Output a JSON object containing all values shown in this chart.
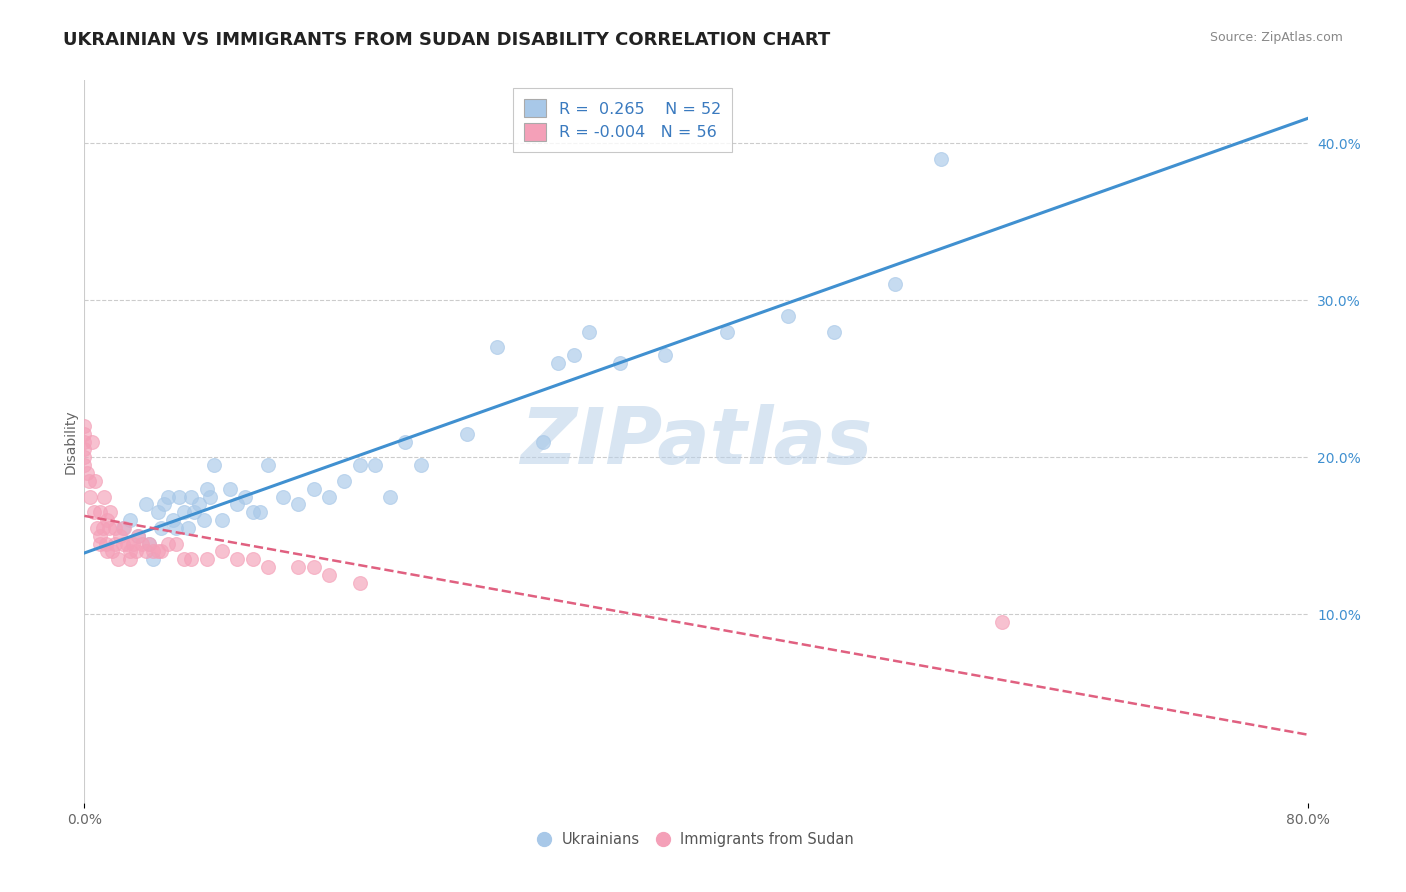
{
  "title": "UKRAINIAN VS IMMIGRANTS FROM SUDAN DISABILITY CORRELATION CHART",
  "source": "Source: ZipAtlas.com",
  "ylabel": "Disability",
  "watermark": "ZIPatlas",
  "xlim": [
    0.0,
    0.8
  ],
  "ylim": [
    -0.02,
    0.44
  ],
  "yticks_right": [
    0.1,
    0.2,
    0.3,
    0.4
  ],
  "ytick_labels_right": [
    "10.0%",
    "20.0%",
    "30.0%",
    "40.0%"
  ],
  "blue_color": "#a8c8e8",
  "pink_color": "#f4a0b8",
  "trendline_blue": "#4090d0",
  "trendline_pink": "#e06080",
  "ukrainians_x": [
    0.025,
    0.03,
    0.035,
    0.04,
    0.042,
    0.045,
    0.048,
    0.05,
    0.052,
    0.055,
    0.058,
    0.06,
    0.062,
    0.065,
    0.068,
    0.07,
    0.072,
    0.075,
    0.078,
    0.08,
    0.082,
    0.085,
    0.09,
    0.095,
    0.1,
    0.105,
    0.11,
    0.115,
    0.12,
    0.13,
    0.14,
    0.15,
    0.16,
    0.17,
    0.18,
    0.19,
    0.2,
    0.21,
    0.22,
    0.25,
    0.27,
    0.3,
    0.31,
    0.32,
    0.33,
    0.35,
    0.38,
    0.42,
    0.46,
    0.49,
    0.53,
    0.56
  ],
  "ukrainians_y": [
    0.155,
    0.16,
    0.15,
    0.17,
    0.145,
    0.135,
    0.165,
    0.155,
    0.17,
    0.175,
    0.16,
    0.155,
    0.175,
    0.165,
    0.155,
    0.175,
    0.165,
    0.17,
    0.16,
    0.18,
    0.175,
    0.195,
    0.16,
    0.18,
    0.17,
    0.175,
    0.165,
    0.165,
    0.195,
    0.175,
    0.17,
    0.18,
    0.175,
    0.185,
    0.195,
    0.195,
    0.175,
    0.21,
    0.195,
    0.215,
    0.27,
    0.21,
    0.26,
    0.265,
    0.28,
    0.26,
    0.265,
    0.28,
    0.29,
    0.28,
    0.31,
    0.39
  ],
  "sudan_x": [
    0.0,
    0.0,
    0.0,
    0.0,
    0.0,
    0.0,
    0.002,
    0.003,
    0.004,
    0.005,
    0.006,
    0.007,
    0.008,
    0.01,
    0.01,
    0.01,
    0.012,
    0.013,
    0.014,
    0.015,
    0.015,
    0.016,
    0.017,
    0.018,
    0.02,
    0.02,
    0.022,
    0.023,
    0.025,
    0.026,
    0.028,
    0.03,
    0.03,
    0.032,
    0.034,
    0.035,
    0.038,
    0.04,
    0.042,
    0.045,
    0.048,
    0.05,
    0.055,
    0.06,
    0.065,
    0.07,
    0.08,
    0.09,
    0.1,
    0.11,
    0.12,
    0.14,
    0.15,
    0.16,
    0.18,
    0.6
  ],
  "sudan_y": [
    0.2,
    0.21,
    0.205,
    0.215,
    0.195,
    0.22,
    0.19,
    0.185,
    0.175,
    0.21,
    0.165,
    0.185,
    0.155,
    0.145,
    0.15,
    0.165,
    0.155,
    0.175,
    0.145,
    0.14,
    0.16,
    0.155,
    0.165,
    0.14,
    0.145,
    0.155,
    0.135,
    0.15,
    0.145,
    0.155,
    0.145,
    0.135,
    0.14,
    0.145,
    0.14,
    0.15,
    0.145,
    0.14,
    0.145,
    0.14,
    0.14,
    0.14,
    0.145,
    0.145,
    0.135,
    0.135,
    0.135,
    0.14,
    0.135,
    0.135,
    0.13,
    0.13,
    0.13,
    0.125,
    0.12,
    0.095
  ],
  "grid_color": "#cccccc",
  "background_color": "#ffffff",
  "title_fontsize": 13,
  "axis_label_fontsize": 10,
  "tick_fontsize": 10,
  "legend_text_color": "#3a7abf"
}
